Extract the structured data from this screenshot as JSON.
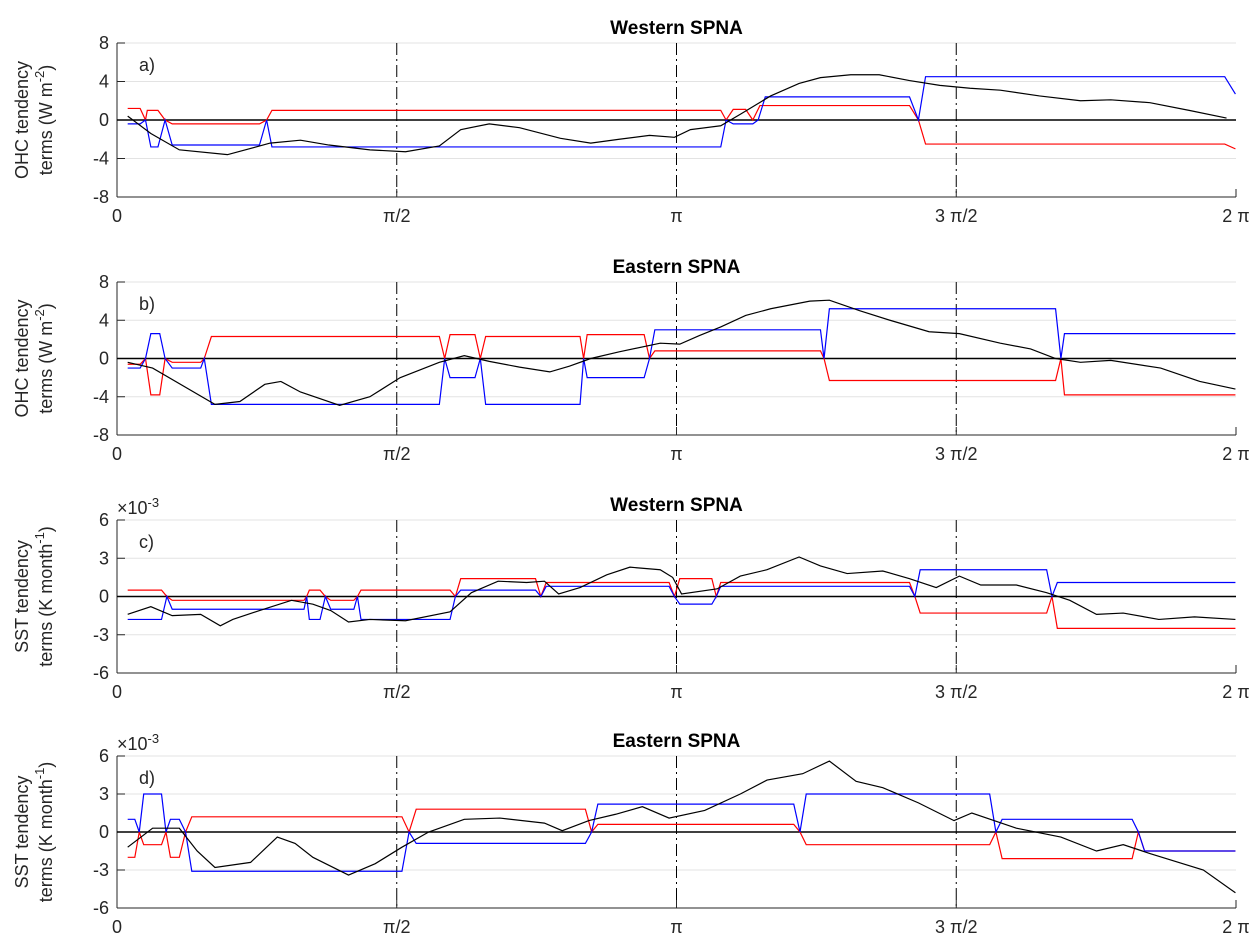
{
  "chart_data": [
    {
      "type": "line",
      "title": "Western SPNA",
      "annotation": "a)",
      "ylabel": {
        "line1": "OHC tendency",
        "line2": "terms (W m",
        "sup": "-2",
        "close": ")"
      },
      "xlim": [
        0,
        6.2832
      ],
      "xticks": [
        0,
        {
          "value": 1.5708,
          "label": "π/2"
        },
        {
          "value": 3.1416,
          "label": "π"
        },
        {
          "value": 4.7124,
          "label": "3 π/2"
        },
        {
          "value": 6.2832,
          "label": "2 π"
        }
      ],
      "ylim": [
        -8,
        8
      ],
      "yticks": [
        -8,
        -4,
        0,
        4,
        8
      ],
      "grid": true,
      "zero_line": true,
      "dashed_xtick_lines": true,
      "series": [
        {
          "color": "#ff0000",
          "x": [
            0.06,
            0.13,
            0.16,
            0.17,
            0.23,
            0.27,
            0.31,
            0.8,
            0.84,
            0.87,
            3.39,
            3.42,
            3.46,
            3.53,
            3.57,
            3.61,
            4.45,
            4.5,
            4.54,
            6.22,
            6.28
          ],
          "values": [
            1.2,
            1.2,
            0,
            1.0,
            1.0,
            0,
            -0.4,
            -0.4,
            0,
            1.0,
            1.0,
            0,
            1.1,
            1.1,
            0,
            1.5,
            1.5,
            0,
            -2.5,
            -2.5,
            -3.0
          ]
        },
        {
          "color": "#0000ff",
          "x": [
            0.06,
            0.13,
            0.16,
            0.19,
            0.23,
            0.27,
            0.31,
            0.8,
            0.84,
            0.87,
            3.39,
            3.42,
            3.46,
            3.57,
            3.6,
            3.64,
            4.45,
            4.5,
            4.54,
            6.22,
            6.28
          ],
          "values": [
            -0.4,
            -0.4,
            0,
            -2.8,
            -2.8,
            0,
            -2.6,
            -2.6,
            0,
            -2.8,
            -2.8,
            0,
            -0.4,
            -0.4,
            0,
            2.4,
            2.4,
            0,
            4.5,
            4.5,
            2.7
          ]
        },
        {
          "color": "#000000",
          "x": [
            0.06,
            0.19,
            0.35,
            0.62,
            0.86,
            1.03,
            1.19,
            1.42,
            1.62,
            1.81,
            1.93,
            2.09,
            2.26,
            2.49,
            2.66,
            2.82,
            2.99,
            3.13,
            3.22,
            3.39,
            3.5,
            3.67,
            3.83,
            3.95,
            4.12,
            4.28,
            4.45,
            4.62,
            4.79,
            4.96,
            5.18,
            5.41,
            5.58,
            5.8,
            6.02,
            6.23
          ],
          "values": [
            0.4,
            -1.4,
            -3.1,
            -3.6,
            -2.4,
            -2.1,
            -2.6,
            -3.1,
            -3.3,
            -2.7,
            -1.0,
            -0.4,
            -0.8,
            -1.9,
            -2.4,
            -2.0,
            -1.6,
            -1.8,
            -1.0,
            -0.6,
            0.6,
            2.5,
            3.8,
            4.4,
            4.7,
            4.7,
            4.1,
            3.6,
            3.3,
            3.1,
            2.5,
            2.0,
            2.1,
            1.8,
            1.0,
            0.2
          ]
        }
      ]
    },
    {
      "type": "line",
      "title": "Eastern SPNA",
      "annotation": "b)",
      "ylabel": {
        "line1": "OHC tendency",
        "line2": "terms (W m",
        "sup": "-2",
        "close": ")"
      },
      "xlim": [
        0,
        6.2832
      ],
      "xticks": [
        0,
        {
          "value": 1.5708,
          "label": "π/2"
        },
        {
          "value": 3.1416,
          "label": "π"
        },
        {
          "value": 4.7124,
          "label": "3 π/2"
        },
        {
          "value": 6.2832,
          "label": "2 π"
        }
      ],
      "ylim": [
        -8,
        8
      ],
      "yticks": [
        -8,
        -4,
        0,
        4,
        8
      ],
      "grid": true,
      "zero_line": true,
      "dashed_xtick_lines": true,
      "series": [
        {
          "color": "#ff0000",
          "x": [
            0.06,
            0.13,
            0.16,
            0.19,
            0.24,
            0.27,
            0.31,
            0.47,
            0.49,
            0.53,
            1.81,
            1.84,
            1.87,
            2.01,
            2.04,
            2.07,
            2.6,
            2.62,
            2.64,
            2.96,
            2.99,
            3.02,
            3.95,
            3.97,
            4.0,
            5.27,
            5.3,
            5.32,
            6.28
          ],
          "values": [
            -0.6,
            -0.6,
            0,
            -3.8,
            -3.8,
            0,
            -0.4,
            -0.4,
            0,
            2.3,
            2.3,
            0,
            2.5,
            2.5,
            0,
            2.3,
            2.3,
            0,
            2.5,
            2.5,
            0,
            0.8,
            0.8,
            0,
            -2.3,
            -2.3,
            0,
            -3.8,
            -3.8
          ]
        },
        {
          "color": "#0000ff",
          "x": [
            0.06,
            0.13,
            0.16,
            0.19,
            0.24,
            0.27,
            0.31,
            0.47,
            0.49,
            0.53,
            1.81,
            1.84,
            1.87,
            2.01,
            2.04,
            2.07,
            2.6,
            2.62,
            2.64,
            2.96,
            2.99,
            3.02,
            3.95,
            3.97,
            4.0,
            5.27,
            5.3,
            5.32,
            6.28
          ],
          "values": [
            -1,
            -1,
            0,
            2.6,
            2.6,
            0,
            -1,
            -1,
            0,
            -4.8,
            -4.8,
            0,
            -2,
            -2,
            0,
            -4.8,
            -4.8,
            0,
            -2,
            -2,
            0,
            3.0,
            3.0,
            0,
            5.2,
            5.2,
            0,
            2.6,
            2.6
          ]
        },
        {
          "color": "#000000",
          "x": [
            0.06,
            0.2,
            0.55,
            0.69,
            0.83,
            0.92,
            1.03,
            1.25,
            1.42,
            1.59,
            1.81,
            1.95,
            2.09,
            2.26,
            2.43,
            2.54,
            2.66,
            2.82,
            3.05,
            3.16,
            3.27,
            3.39,
            3.53,
            3.67,
            3.89,
            4.0,
            4.17,
            4.34,
            4.56,
            4.73,
            4.96,
            5.13,
            5.27,
            5.41,
            5.58,
            5.86,
            6.08,
            6.28
          ],
          "values": [
            -0.4,
            -1.0,
            -4.8,
            -4.5,
            -2.7,
            -2.4,
            -3.5,
            -4.9,
            -4.0,
            -2.0,
            -0.4,
            0.3,
            -0.3,
            -0.9,
            -1.4,
            -0.8,
            0,
            0.7,
            1.6,
            1.5,
            2.4,
            3.3,
            4.5,
            5.2,
            6.0,
            6.1,
            5.0,
            4.0,
            2.8,
            2.6,
            1.6,
            1.0,
            0,
            -0.4,
            -0.2,
            -1.0,
            -2.4,
            -3.2
          ]
        }
      ]
    },
    {
      "type": "line",
      "title": "Western SPNA",
      "annotation": "c)",
      "ylabel": {
        "line1": "SST tendency",
        "line2": "terms (K month",
        "sup": "-1",
        "close": ")"
      },
      "y_multiplier": {
        "base": "×10",
        "exponent": "-3"
      },
      "xlim": [
        0,
        6.2832
      ],
      "xticks": [
        0,
        {
          "value": 1.5708,
          "label": "π/2"
        },
        {
          "value": 3.1416,
          "label": "π"
        },
        {
          "value": 4.7124,
          "label": "3 π/2"
        },
        {
          "value": 6.2832,
          "label": "2 π"
        }
      ],
      "ylim": [
        -6,
        6
      ],
      "yticks": [
        -6,
        -3,
        0,
        3,
        6
      ],
      "grid": true,
      "zero_line": true,
      "dashed_xtick_lines": true,
      "series": [
        {
          "color": "#ff0000",
          "x": [
            0.06,
            0.25,
            0.28,
            0.31,
            1.05,
            1.065,
            1.08,
            1.14,
            1.17,
            1.2,
            1.33,
            1.35,
            1.37,
            1.87,
            1.9,
            1.93,
            2.35,
            2.38,
            2.41,
            3.1,
            3.13,
            3.16,
            3.34,
            3.365,
            3.39,
            4.45,
            4.48,
            4.51,
            5.22,
            5.25,
            5.28,
            6.28
          ],
          "values": [
            0.5,
            0.5,
            0,
            -0.3,
            -0.3,
            0,
            0.5,
            0.5,
            0,
            -0.3,
            -0.3,
            0,
            0.5,
            0.5,
            0,
            1.4,
            1.4,
            0,
            1.1,
            1.1,
            0,
            1.4,
            1.4,
            0,
            1.1,
            1.1,
            0,
            -1.3,
            -1.3,
            0,
            -2.5,
            -2.5
          ]
        },
        {
          "color": "#0000ff",
          "x": [
            0.06,
            0.25,
            0.28,
            0.31,
            1.05,
            1.065,
            1.08,
            1.14,
            1.17,
            1.2,
            1.33,
            1.35,
            1.37,
            1.87,
            1.9,
            1.93,
            2.35,
            2.38,
            2.41,
            3.1,
            3.13,
            3.16,
            3.34,
            3.365,
            3.39,
            4.45,
            4.48,
            4.51,
            5.22,
            5.25,
            5.28,
            6.28
          ],
          "values": [
            -1.8,
            -1.8,
            0,
            -1.0,
            -1.0,
            0,
            -1.8,
            -1.8,
            0,
            -1.0,
            -1.0,
            0,
            -1.8,
            -1.8,
            0,
            0.5,
            0.5,
            0,
            0.8,
            0.8,
            0,
            -0.6,
            -0.6,
            0,
            0.8,
            0.8,
            0,
            2.1,
            2.1,
            0,
            1.1,
            1.1
          ]
        },
        {
          "color": "#000000",
          "x": [
            0.06,
            0.19,
            0.31,
            0.47,
            0.58,
            0.65,
            0.8,
            0.98,
            1.1,
            1.2,
            1.3,
            1.42,
            1.62,
            1.87,
            1.99,
            2.14,
            2.3,
            2.4,
            2.48,
            2.6,
            2.75,
            2.88,
            3.05,
            3.12,
            3.17,
            3.37,
            3.5,
            3.65,
            3.83,
            3.95,
            4.1,
            4.3,
            4.45,
            4.6,
            4.73,
            4.85,
            5.05,
            5.22,
            5.35,
            5.5,
            5.65,
            5.85,
            6.05,
            6.28
          ],
          "values": [
            -1.4,
            -0.8,
            -1.5,
            -1.4,
            -2.3,
            -1.8,
            -1.1,
            -0.3,
            -0.6,
            -1.1,
            -2.0,
            -1.8,
            -1.9,
            -1.2,
            0.3,
            1.2,
            1.1,
            1.2,
            0.2,
            0.7,
            1.7,
            2.3,
            2.1,
            1.5,
            0.2,
            0.6,
            1.6,
            2.1,
            3.1,
            2.4,
            1.8,
            2.0,
            1.4,
            0.7,
            1.6,
            0.9,
            0.9,
            0.3,
            -0.3,
            -1.4,
            -1.3,
            -1.8,
            -1.6,
            -1.8
          ]
        }
      ]
    },
    {
      "type": "line",
      "title": "Eastern SPNA",
      "annotation": "d)",
      "ylabel": {
        "line1": "SST tendency",
        "line2": "terms (K month",
        "sup": "-1",
        "close": ")"
      },
      "y_multiplier": {
        "base": "×10",
        "exponent": "-3"
      },
      "xlim": [
        0,
        6.2832
      ],
      "xticks": [
        0,
        {
          "value": 1.5708,
          "label": "π/2"
        },
        {
          "value": 3.1416,
          "label": "π"
        },
        {
          "value": 4.7124,
          "label": "3 π/2"
        },
        {
          "value": 6.2832,
          "label": "2 π"
        }
      ],
      "ylim": [
        -6,
        6
      ],
      "yticks": [
        -6,
        -3,
        0,
        3,
        6
      ],
      "grid": true,
      "zero_line": true,
      "dashed_xtick_lines": true,
      "series": [
        {
          "color": "#ff0000",
          "x": [
            0.06,
            0.1,
            0.125,
            0.15,
            0.25,
            0.275,
            0.3,
            0.35,
            0.385,
            0.42,
            1.6,
            1.64,
            1.68,
            2.63,
            2.665,
            2.7,
            3.8,
            3.835,
            3.87,
            4.9,
            4.935,
            4.97,
            5.7,
            5.735,
            5.77,
            6.28
          ],
          "values": [
            -2,
            -2,
            0,
            -1,
            -1,
            0,
            -2,
            -2,
            0,
            1.2,
            1.2,
            0,
            1.8,
            1.8,
            0,
            0.6,
            0.6,
            0,
            -1,
            -1,
            0,
            -2.1,
            -2.1,
            0,
            -1.5,
            -1.5
          ]
        },
        {
          "color": "#0000ff",
          "x": [
            0.06,
            0.1,
            0.125,
            0.15,
            0.25,
            0.275,
            0.3,
            0.35,
            0.385,
            0.42,
            1.6,
            1.64,
            1.68,
            2.63,
            2.665,
            2.7,
            3.8,
            3.835,
            3.87,
            4.9,
            4.935,
            4.97,
            5.7,
            5.735,
            5.77,
            6.28
          ],
          "values": [
            1,
            1,
            0,
            3,
            3,
            0,
            1,
            1,
            0,
            -3.1,
            -3.1,
            0,
            -0.9,
            -0.9,
            0,
            2.2,
            2.2,
            0,
            3,
            3,
            0,
            1,
            1,
            0,
            -1.5,
            -1.5
          ]
        },
        {
          "color": "#000000",
          "x": [
            0.06,
            0.2,
            0.35,
            0.45,
            0.55,
            0.75,
            0.9,
            1.0,
            1.1,
            1.3,
            1.45,
            1.6,
            1.75,
            1.95,
            2.15,
            2.4,
            2.5,
            2.65,
            2.8,
            2.95,
            3.1,
            3.3,
            3.5,
            3.65,
            3.85,
            4.0,
            4.15,
            4.3,
            4.5,
            4.7,
            4.8,
            5.05,
            5.3,
            5.5,
            5.65,
            5.8,
            6.1,
            6.28
          ],
          "values": [
            -1.2,
            0.3,
            0.3,
            -1.5,
            -2.8,
            -2.4,
            -0.4,
            -0.9,
            -2.0,
            -3.4,
            -2.5,
            -1.2,
            0,
            1.0,
            1.1,
            0.7,
            0.1,
            0.9,
            1.4,
            2.0,
            1.1,
            1.7,
            3.0,
            4.1,
            4.6,
            5.6,
            4.0,
            3.5,
            2.3,
            0.9,
            1.5,
            0.3,
            -0.4,
            -1.5,
            -1.0,
            -1.7,
            -3.0,
            -4.8
          ]
        }
      ]
    }
  ]
}
